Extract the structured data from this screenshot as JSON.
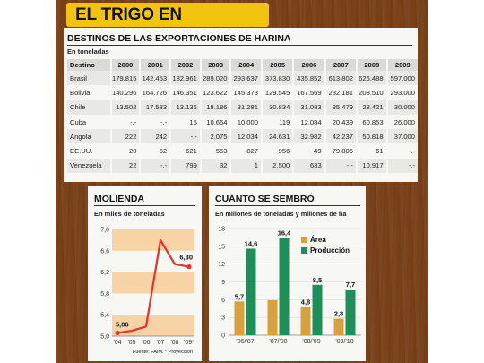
{
  "main_title": "EL TRIGO EN NÚMEROS",
  "colors": {
    "wood": "#7a4016",
    "banner": "#f2c40f",
    "orange": "#d9a03f",
    "green": "#1f8f5a",
    "band": "#f8d3a6",
    "line": "#e5322a"
  },
  "exports": {
    "title": "DESTINOS DE LAS EXPORTACIONES DE HARINA",
    "unit": "En toneladas",
    "header_label": "Destino",
    "years": [
      "2000",
      "2001",
      "2002",
      "2003",
      "2004",
      "2005",
      "2006",
      "2007",
      "2008",
      "2009"
    ],
    "rows": [
      {
        "country": "Brasil",
        "values": [
          "179.815",
          "142.453",
          "182.961",
          "289.020",
          "293.637",
          "373.830",
          "435.852",
          "613.802",
          "626.488",
          "597.000"
        ]
      },
      {
        "country": "Bolivia",
        "values": [
          "140.296",
          "164.726",
          "146.351",
          "123.622",
          "145.373",
          "129.545",
          "167.569",
          "232.181",
          "208.510",
          "293.000"
        ]
      },
      {
        "country": "Chile",
        "values": [
          "13.502",
          "17.533",
          "13.136",
          "18.186",
          "31.281",
          "30.834",
          "31.083",
          "35.479",
          "28.421",
          "30.000"
        ]
      },
      {
        "country": "Cuba",
        "values": [
          "-.-",
          "-.-",
          "15",
          "10.664",
          "10.000",
          "119",
          "12.084",
          "20.439",
          "60.853",
          "26.000"
        ]
      },
      {
        "country": "Angola",
        "values": [
          "222",
          "242",
          "-.-",
          "2.075",
          "12.034",
          "24.631",
          "32.982",
          "42.237",
          "50.818",
          "37.000"
        ]
      },
      {
        "country": "EE.UU.",
        "values": [
          "20",
          "52",
          "621",
          "553",
          "827",
          "956",
          "49",
          "79.805",
          "61",
          "-.-"
        ]
      },
      {
        "country": "Venezuela",
        "values": [
          "22",
          "-.-",
          "799",
          "32",
          "1",
          "2.500",
          "633",
          "-.-",
          "10.917",
          "-.-"
        ]
      }
    ]
  },
  "molienda": {
    "title": "MOLIENDA",
    "unit": "En miles de toneladas",
    "source": "Fuente: FAIM. * Proyección",
    "first_label": "5,06",
    "last_label": "6,30"
  },
  "cuanto": {
    "title": "CUÁNTO SE SEMBRÓ",
    "unit": "En millones de toneladas y millones de ha"
  },
  "chart_data": [
    {
      "type": "line",
      "title": "MOLIENDA",
      "ylabel": "En miles de toneladas",
      "x": [
        "'04",
        "'05",
        "'06",
        "'07",
        "'08",
        "'09*"
      ],
      "values": [
        5.06,
        5.1,
        5.18,
        6.8,
        6.35,
        6.3
      ],
      "ylim": [
        5.0,
        7.0
      ],
      "yticks": [
        "5,0",
        "5,4",
        "5,8",
        "6,2",
        "6,6",
        "7,0"
      ],
      "grid": false
    },
    {
      "type": "bar",
      "title": "CUÁNTO SE SEMBRÓ",
      "ylabel": "En millones de toneladas y millones de ha",
      "categories": [
        "'06/'07",
        "'07/'08",
        "'08/'09",
        "'09/'10"
      ],
      "series": [
        {
          "name": "Área",
          "values": [
            5.7,
            5.9,
            4.8,
            2.8
          ],
          "labels": [
            "5,7",
            "",
            "4,8",
            "2,8"
          ],
          "color": "#d9a03f"
        },
        {
          "name": "Producción",
          "values": [
            14.6,
            16.4,
            8.5,
            7.7
          ],
          "labels": [
            "14,6",
            "16,4",
            "8,5",
            "7,7"
          ],
          "color": "#1f8f5a"
        }
      ],
      "ylim": [
        0,
        18
      ],
      "yticks": [
        "0",
        "3",
        "6",
        "9",
        "12",
        "15",
        "18"
      ],
      "legend": "top-center"
    }
  ]
}
